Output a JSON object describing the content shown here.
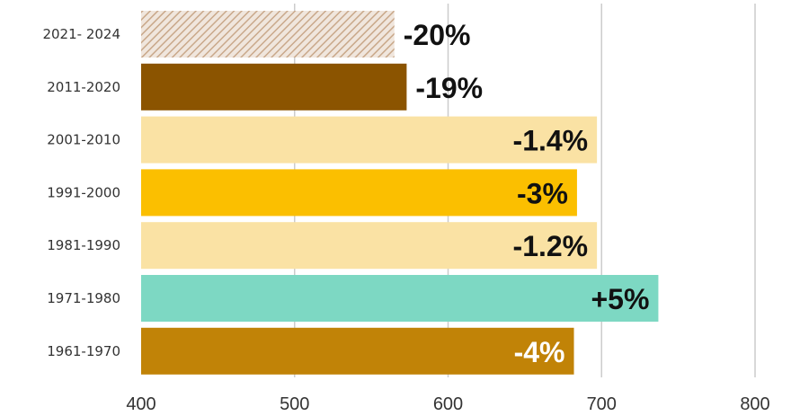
{
  "chart_data": {
    "type": "bar",
    "orientation": "horizontal",
    "categories": [
      "2021- 2024",
      "2011-2020",
      "2001-2010",
      "1991-2000",
      "1981-1990",
      "1971-1980",
      "1961-1970"
    ],
    "values": [
      565,
      573,
      697,
      684,
      697,
      737,
      682
    ],
    "data_labels": [
      "-20%",
      "-19%",
      "-1.4%",
      "-3%",
      "-1.2%",
      "+5%",
      "-4%"
    ],
    "colors": [
      "hatch",
      "#8b5400",
      "#fae2a4",
      "#fbbf00",
      "#fae2a4",
      "#7dd8c3",
      "#c18307"
    ],
    "label_colors": [
      "#111111",
      "#111111",
      "#111111",
      "#111111",
      "#111111",
      "#111111",
      "#ffffff"
    ],
    "label_position": [
      "outside",
      "outside",
      "inside",
      "inside",
      "inside",
      "inside",
      "inside"
    ],
    "x_ticks": [
      400,
      500,
      600,
      700,
      800
    ],
    "xlim": [
      400,
      800
    ],
    "grid": "vertical",
    "title": "",
    "xlabel": "",
    "ylabel": ""
  }
}
